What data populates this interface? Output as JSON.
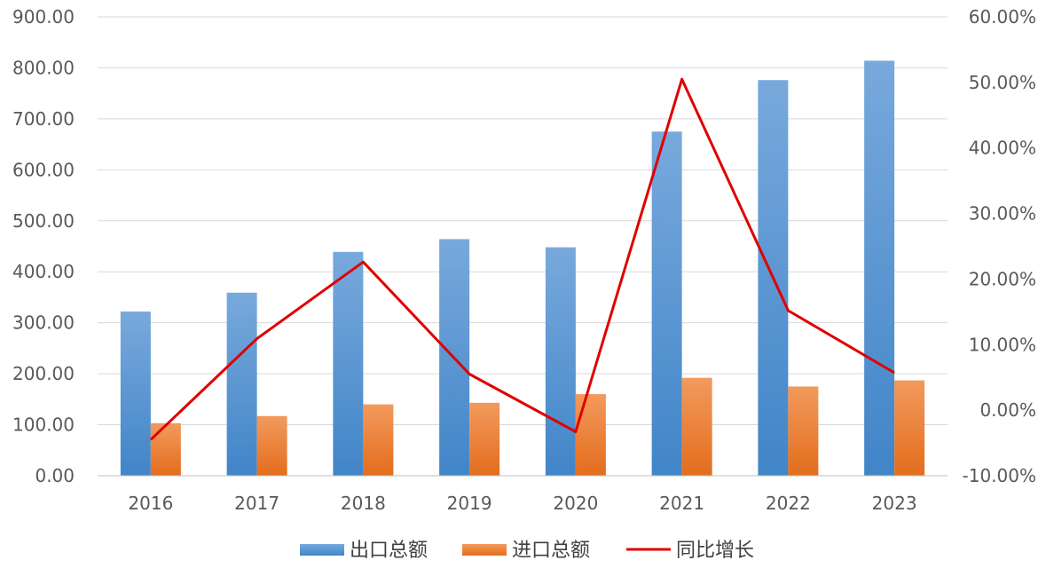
{
  "chart_data": {
    "type": "bar",
    "categories": [
      "2016",
      "2017",
      "2018",
      "2019",
      "2020",
      "2021",
      "2022",
      "2023"
    ],
    "series": [
      {
        "name": "出口总额",
        "type": "bar",
        "axis": "left",
        "color": "#5b9bd5",
        "values": [
          322,
          359,
          439,
          464,
          448,
          675,
          776,
          814
        ]
      },
      {
        "name": "进口总额",
        "type": "bar",
        "axis": "left",
        "color": "#ed7d31",
        "values": [
          103,
          117,
          140,
          143,
          160,
          192,
          175,
          187
        ]
      },
      {
        "name": "同比增长",
        "type": "line",
        "axis": "right",
        "color": "#e00000",
        "values": [
          -4.5,
          10.9,
          22.6,
          5.5,
          -3.3,
          50.5,
          15.2,
          5.7
        ]
      }
    ],
    "y_left": {
      "min": 0,
      "max": 900,
      "step": 100,
      "tick_labels": [
        "0.00",
        "100.00",
        "200.00",
        "300.00",
        "400.00",
        "500.00",
        "600.00",
        "700.00",
        "800.00",
        "900.00"
      ]
    },
    "y_right": {
      "min": -10,
      "max": 60,
      "step": 10,
      "unit": "%",
      "tick_labels": [
        "-10.00%",
        "0.00%",
        "10.00%",
        "20.00%",
        "30.00%",
        "40.00%",
        "50.00%",
        "60.00%"
      ]
    },
    "grid": true,
    "legend_position": "bottom"
  }
}
